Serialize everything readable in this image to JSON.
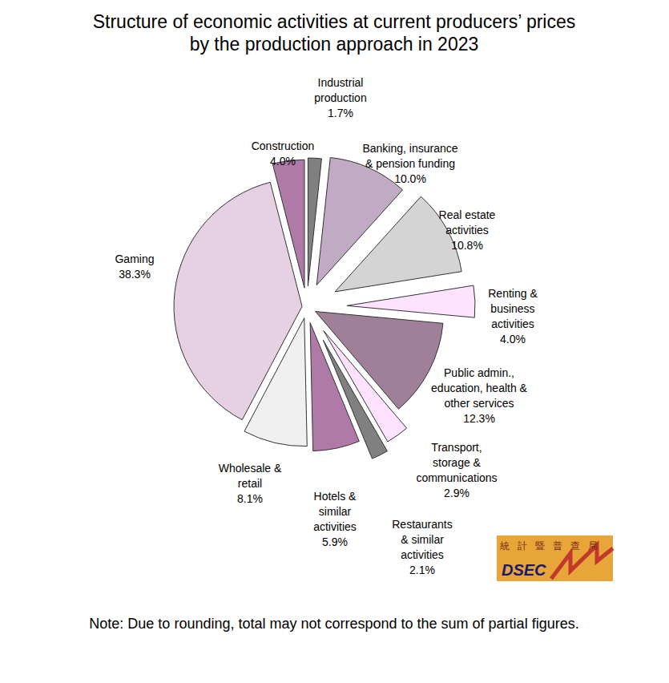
{
  "chart_data": {
    "type": "pie",
    "title": "Structure of economic activities at current producers’ prices by the production approach in 2023",
    "categories": [
      "Industrial production",
      "Banking, insurance & pension funding",
      "Real estate activities",
      "Renting & business activities",
      "Public admin., education, health & other services",
      "Transport, storage & communications",
      "Restaurants & similar activities",
      "Hotels & similar activities",
      "Wholesale & retail",
      "Gaming",
      "Construction"
    ],
    "values": [
      1.7,
      10.0,
      10.8,
      4.0,
      12.3,
      2.9,
      2.1,
      5.9,
      8.1,
      38.3,
      4.0
    ],
    "value_labels": [
      "1.7%",
      "10.0%",
      "10.8%",
      "4.0%",
      "12.3%",
      "2.9%",
      "2.1%",
      "5.9%",
      "8.1%",
      "38.3%",
      "4.0%"
    ],
    "colors": [
      "#808080",
      "#c0aac4",
      "#d4d4d4",
      "#ffe2ff",
      "#a08098",
      "#ffe2ff",
      "#808080",
      "#b07aa8",
      "#f0f0f0",
      "#e6d0e4",
      "#b07aa8"
    ],
    "data_labels": true,
    "note": "Note: Due to rounding, total may not correspond to the sum of partial figures.",
    "logo": {
      "text_zh": "統計暨普查局",
      "text": "DSEC"
    }
  }
}
